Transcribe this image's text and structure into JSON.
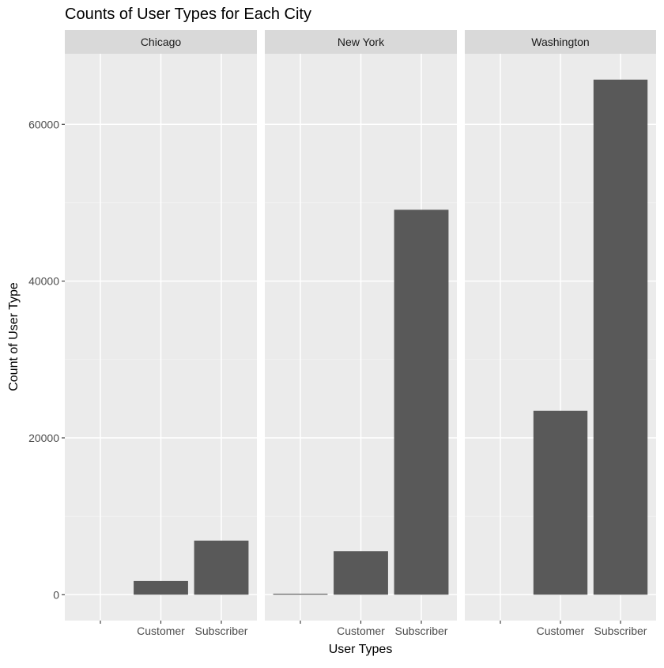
{
  "chart_data": {
    "type": "bar",
    "title": "Counts of User Types for Each City",
    "xlabel": "User Types",
    "ylabel": "Count of User Type",
    "categories": [
      "",
      "Customer",
      "Subscriber"
    ],
    "ylim": [
      -3300,
      69000
    ],
    "yticks": [
      0,
      20000,
      40000,
      60000
    ],
    "grid": true,
    "panels": [
      {
        "name": "Chicago",
        "values": [
          0,
          1750,
          6900
        ]
      },
      {
        "name": "New York",
        "values": [
          120,
          5550,
          49100
        ]
      },
      {
        "name": "Washington",
        "values": [
          0,
          23450,
          65700
        ]
      }
    ],
    "colors": {
      "bar": "#595959",
      "panel_bg": "#EBEBEB",
      "strip_bg": "#D9D9D9",
      "grid_major": "#FFFFFF",
      "text": "#000000",
      "tick_text": "#4D4D4D"
    }
  }
}
